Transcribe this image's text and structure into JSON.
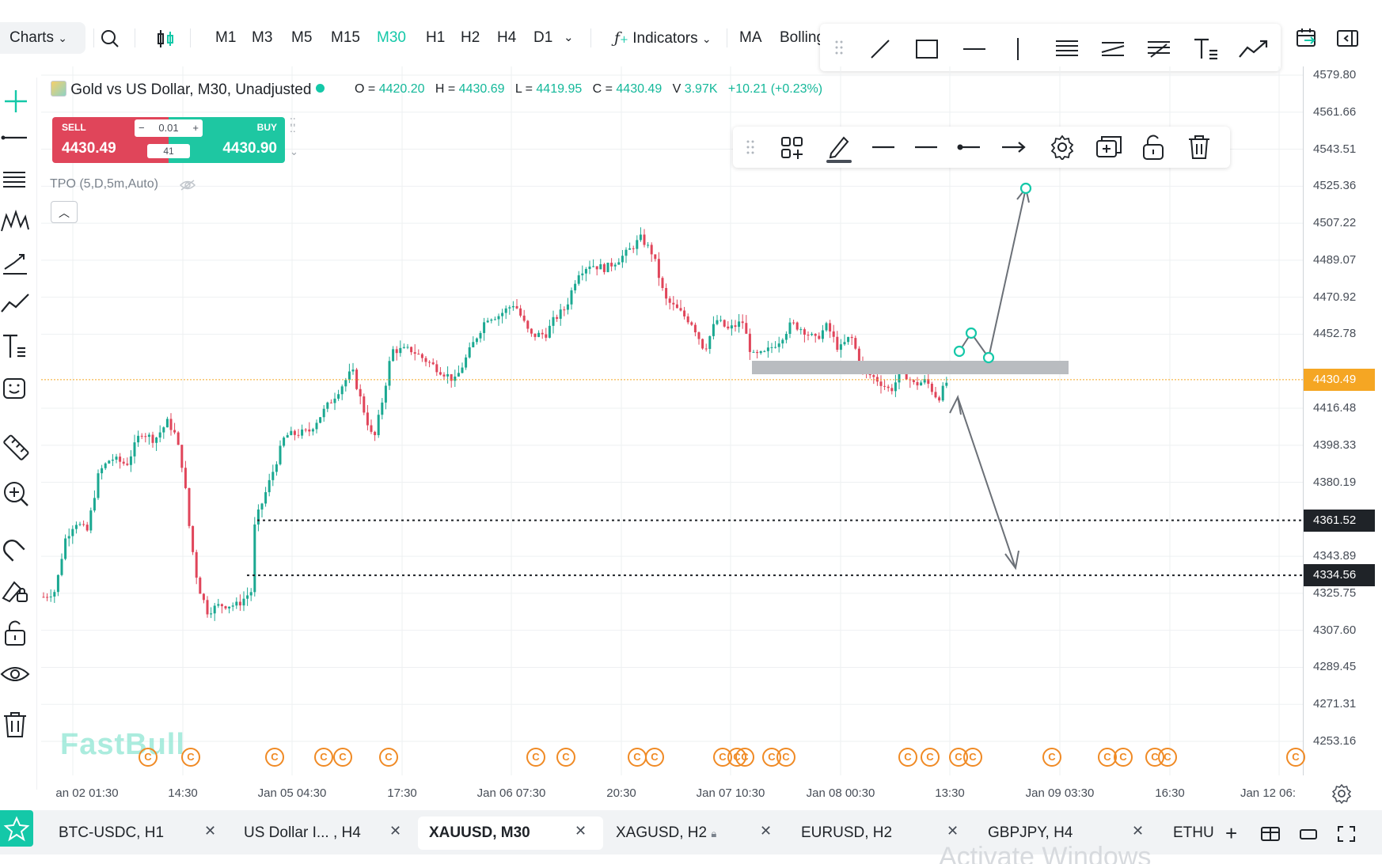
{
  "toolbar": {
    "charts_label": "Charts",
    "timeframes": [
      "M1",
      "M3",
      "M5",
      "M15",
      "M30",
      "H1",
      "H2",
      "H4",
      "D1"
    ],
    "active_timeframe": "M30",
    "indicators_label": "Indicators",
    "ma_label": "MA",
    "bollinger_label": "Bolling"
  },
  "symbol": {
    "title": "Gold vs US Dollar, M30, Unadjusted",
    "o_label": "O =",
    "o": "4420.20",
    "h_label": "H =",
    "h": "4430.69",
    "l_label": "L =",
    "l": "4419.95",
    "c_label": "C =",
    "c": "4430.49",
    "v_label": "V",
    "v": "3.97K",
    "change": "+10.21 (+0.23%)"
  },
  "trade": {
    "sell_label": "SELL",
    "sell_price": "4430.49",
    "buy_label": "BUY",
    "buy_price": "4430.90",
    "lot": "0.01",
    "spread": "41"
  },
  "indicator_label": "TPO (5,D,5m,Auto)",
  "watermark": "FastBull",
  "y_axis": {
    "ticks": [
      "4579.80",
      "4561.66",
      "4543.51",
      "4525.36",
      "4507.22",
      "4489.07",
      "4470.92",
      "4452.78",
      "4416.48",
      "4398.33",
      "4380.19",
      "4343.89",
      "4325.75",
      "4307.60",
      "4289.45",
      "4271.31",
      "4253.16"
    ],
    "current_price": "4430.49",
    "line1": "4361.52",
    "line2": "4334.56"
  },
  "x_axis": {
    "ticks": [
      "an 02 01:30",
      "14:30",
      "Jan 05 04:30",
      "17:30",
      "Jan 06 07:30",
      "20:30",
      "Jan 07 10:30",
      "Jan 08 00:30",
      "13:30",
      "Jan 09 03:30",
      "16:30",
      "Jan 12 06:"
    ]
  },
  "tabs": [
    {
      "label": "BTC-USDC, H1"
    },
    {
      "label": "US Dollar I... , H4"
    },
    {
      "label": "XAUUSD, M30"
    },
    {
      "label": "XAGUSD, H2"
    },
    {
      "label": "EURUSD, H2"
    },
    {
      "label": "GBPJPY, H4"
    },
    {
      "label": "ETHU"
    }
  ],
  "active_tab": "XAUUSD, M30",
  "os_watermark": "Activate Windows",
  "colors": {
    "accent": "#14c8a8",
    "up": "#1aa891",
    "down": "#e0455a",
    "price_tag": "#f5a623",
    "event": "#f08a24"
  }
}
